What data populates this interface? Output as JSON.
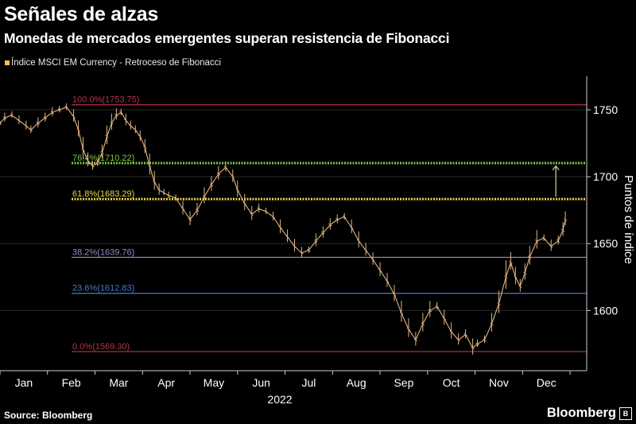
{
  "header": {
    "title": "Señales de alzas",
    "subtitle": "Monedas de mercados emergentes superan resistencia de Fibonacci"
  },
  "footer": {
    "source": "Source: Bloomberg",
    "brand": "Bloomberg"
  },
  "colors": {
    "background": "#000000",
    "series": "#e0b483",
    "fib_100": "#b8344a",
    "fib_76": "#7ec845",
    "fib_61": "#e8d84a",
    "fib_38": "#9c88c8",
    "fib_23": "#4a78c8",
    "fib_0": "#b8344a",
    "axis": "#cccccc",
    "arrow": "#c9d9a0"
  },
  "icons": {
    "arrow": "up-arrow-icon",
    "brand": "bloomberg-box-icon"
  },
  "chart_data": {
    "type": "line",
    "legend": "Índice MSCI EM Currency - Retroceso de Fibonacci",
    "ylabel": "Puntos de índice",
    "xlabel": "2022",
    "ylim": [
      1555,
      1775
    ],
    "xlim": [
      0,
      12.35
    ],
    "x_ticks": [
      {
        "label": "Jan",
        "x": 0.5
      },
      {
        "label": "Feb",
        "x": 1.5
      },
      {
        "label": "Mar",
        "x": 2.5
      },
      {
        "label": "Apr",
        "x": 3.5
      },
      {
        "label": "May",
        "x": 4.5
      },
      {
        "label": "Jun",
        "x": 5.5
      },
      {
        "label": "Jul",
        "x": 6.5
      },
      {
        "label": "Aug",
        "x": 7.5
      },
      {
        "label": "Sep",
        "x": 8.5
      },
      {
        "label": "Oct",
        "x": 9.5
      },
      {
        "label": "Nov",
        "x": 10.5
      },
      {
        "label": "Dec",
        "x": 11.5
      }
    ],
    "y_ticks": [
      1600,
      1650,
      1700,
      1750
    ],
    "fibonacci_levels": [
      {
        "label": "100.0%(1753.75)",
        "value": 1753.75,
        "color_key": "fib_100",
        "dashed": false
      },
      {
        "label": "76.4%(1710.22)",
        "value": 1710.22,
        "color_key": "fib_76",
        "dashed": true
      },
      {
        "label": "61.8%(1683.29)",
        "value": 1683.29,
        "color_key": "fib_61",
        "dashed": true
      },
      {
        "label": "38.2%(1639.76)",
        "value": 1639.76,
        "color_key": "fib_38",
        "dashed": false
      },
      {
        "label": "23.6%(1612.83)",
        "value": 1612.83,
        "color_key": "fib_23",
        "dashed": false
      },
      {
        "label": "0.0%(1569.30)",
        "value": 1569.3,
        "color_key": "fib_0",
        "dashed": false
      }
    ],
    "annotation": {
      "type": "arrow-up",
      "x": 11.7,
      "y_from": 1685,
      "y_to": 1708
    },
    "series": [
      {
        "x": [
          0.0,
          0.1,
          0.25,
          0.4,
          0.55,
          0.65,
          0.8,
          0.95,
          1.1,
          1.25,
          1.4,
          1.55,
          1.65,
          1.75,
          1.85,
          1.95,
          2.05,
          2.15,
          2.25,
          2.35,
          2.45,
          2.55,
          2.65,
          2.75,
          2.85,
          2.95,
          3.05,
          3.15,
          3.25,
          3.35,
          3.45,
          3.55,
          3.7,
          3.85,
          4.0,
          4.15,
          4.3,
          4.45,
          4.6,
          4.75,
          4.9,
          5.0,
          5.15,
          5.3,
          5.45,
          5.6,
          5.75,
          5.9,
          6.05,
          6.2,
          6.35,
          6.5,
          6.65,
          6.8,
          6.95,
          7.1,
          7.25,
          7.4,
          7.55,
          7.7,
          7.85,
          8.0,
          8.15,
          8.3,
          8.45,
          8.6,
          8.75,
          8.9,
          9.05,
          9.2,
          9.35,
          9.5,
          9.65,
          9.8,
          9.95,
          10.05,
          10.2,
          10.35,
          10.5,
          10.65,
          10.75,
          10.85,
          10.95,
          11.05,
          11.15,
          11.3,
          11.45,
          11.6,
          11.75,
          11.85,
          11.9
        ],
        "y": [
          1740,
          1744,
          1746,
          1742,
          1738,
          1735,
          1740,
          1744,
          1748,
          1750,
          1752,
          1745,
          1735,
          1720,
          1712,
          1708,
          1710,
          1718,
          1730,
          1740,
          1746,
          1748,
          1742,
          1738,
          1735,
          1730,
          1722,
          1708,
          1696,
          1690,
          1688,
          1686,
          1684,
          1676,
          1668,
          1675,
          1685,
          1694,
          1702,
          1707,
          1700,
          1690,
          1680,
          1672,
          1676,
          1674,
          1670,
          1662,
          1655,
          1648,
          1643,
          1645,
          1652,
          1658,
          1664,
          1668,
          1670,
          1662,
          1652,
          1645,
          1638,
          1630,
          1622,
          1612,
          1598,
          1586,
          1578,
          1590,
          1600,
          1603,
          1594,
          1584,
          1578,
          1582,
          1572,
          1575,
          1578,
          1590,
          1605,
          1625,
          1636,
          1625,
          1618,
          1628,
          1640,
          1652,
          1654,
          1648,
          1652,
          1660,
          1668
        ]
      }
    ]
  }
}
